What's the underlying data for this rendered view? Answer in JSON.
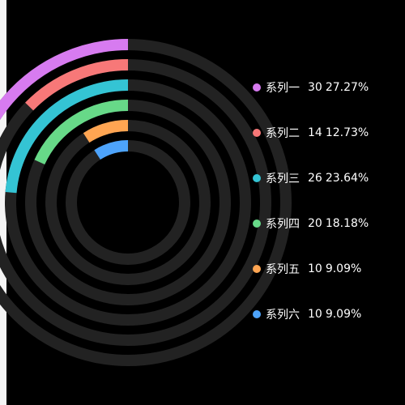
{
  "colors": {
    "background": "#000000",
    "track": "#222222",
    "text": "#ffffff"
  },
  "chart_data": {
    "type": "pie",
    "subtype": "concentric-progress-rings",
    "start_angle_deg": 90,
    "direction": "counterclockwise",
    "grid": false,
    "legend_position": "right",
    "series": [
      {
        "name": "系列一",
        "value": 30,
        "percent": "27.27%",
        "color": "#d77bf0"
      },
      {
        "name": "系列二",
        "value": 14,
        "percent": "12.73%",
        "color": "#f77878"
      },
      {
        "name": "系列三",
        "value": 26,
        "percent": "23.64%",
        "color": "#34c4d4"
      },
      {
        "name": "系列四",
        "value": 20,
        "percent": "18.18%",
        "color": "#67d988"
      },
      {
        "name": "系列五",
        "value": 10,
        "percent": "9.09%",
        "color": "#ffa552"
      },
      {
        "name": "系列六",
        "value": 10,
        "percent": "9.09%",
        "color": "#4da3fb"
      }
    ]
  }
}
